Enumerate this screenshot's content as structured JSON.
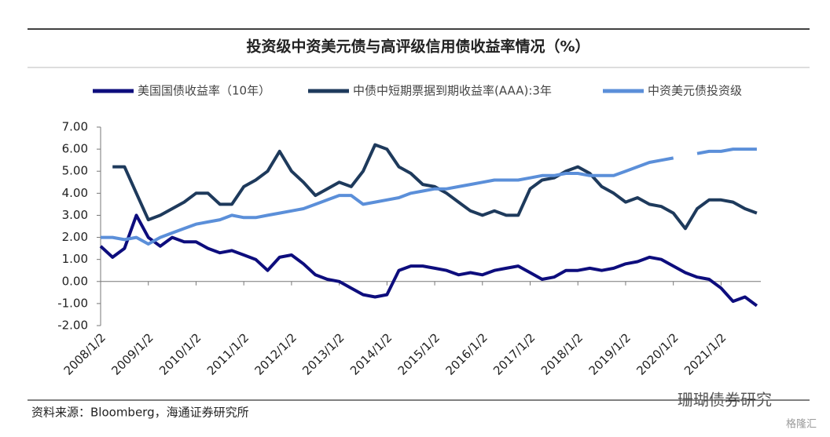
{
  "chart_data": {
    "type": "line",
    "title": "投资级中资美元债与高评级信用债收益率情况（%）",
    "source": "资料来源：Bloomberg，海通证券研究所",
    "watermark": "珊瑚债券研究",
    "watermark2": "格隆汇",
    "x": [
      "2008/1/2",
      "2008/4/2",
      "2008/7/2",
      "2008/10/2",
      "2009/1/2",
      "2009/4/2",
      "2009/7/2",
      "2009/10/2",
      "2010/1/2",
      "2010/4/2",
      "2010/7/2",
      "2010/10/2",
      "2011/1/2",
      "2011/4/2",
      "2011/7/2",
      "2011/10/2",
      "2012/1/2",
      "2012/4/2",
      "2012/7/2",
      "2012/10/2",
      "2013/1/2",
      "2013/4/2",
      "2013/7/2",
      "2013/10/2",
      "2014/1/2",
      "2014/4/2",
      "2014/7/2",
      "2014/10/2",
      "2015/1/2",
      "2015/4/2",
      "2015/7/2",
      "2015/10/2",
      "2016/1/2",
      "2016/4/2",
      "2016/7/2",
      "2016/10/2",
      "2017/1/2",
      "2017/4/2",
      "2017/7/2",
      "2017/10/2",
      "2018/1/2",
      "2018/4/2",
      "2018/7/2",
      "2018/10/2",
      "2019/1/2",
      "2019/4/2",
      "2019/7/2",
      "2019/10/2",
      "2020/1/2",
      "2020/4/2",
      "2020/7/2",
      "2020/10/2",
      "2021/1/2",
      "2021/4/2",
      "2021/7/2",
      "2021/10/2"
    ],
    "series": [
      {
        "name": "美国国债收益率（10年）",
        "color": "#0d0d7d",
        "values": [
          1.6,
          1.1,
          1.5,
          3.0,
          2.0,
          1.6,
          2.0,
          1.8,
          1.8,
          1.5,
          1.3,
          1.4,
          1.2,
          1.0,
          0.5,
          1.1,
          1.2,
          0.8,
          0.3,
          0.1,
          0.0,
          -0.3,
          -0.6,
          -0.7,
          -0.6,
          0.5,
          0.7,
          0.7,
          0.6,
          0.5,
          0.3,
          0.4,
          0.3,
          0.5,
          0.6,
          0.7,
          0.4,
          0.1,
          0.2,
          0.5,
          0.5,
          0.6,
          0.5,
          0.6,
          0.8,
          0.9,
          1.1,
          1.0,
          0.7,
          0.4,
          0.2,
          0.1,
          -0.3,
          -0.9,
          -0.7,
          -1.1
        ]
      },
      {
        "name": "中债中短期票据到期收益率(AAA):3年",
        "color": "#1e3a5c",
        "values": [
          null,
          5.2,
          5.2,
          4.0,
          2.8,
          3.0,
          3.3,
          3.6,
          4.0,
          4.0,
          3.5,
          3.5,
          4.3,
          4.6,
          5.0,
          5.9,
          5.0,
          4.5,
          3.9,
          4.2,
          4.5,
          4.3,
          5.0,
          6.2,
          6.0,
          5.2,
          4.9,
          4.4,
          4.3,
          4.0,
          3.6,
          3.2,
          3.0,
          3.2,
          3.0,
          3.0,
          4.2,
          4.6,
          4.7,
          5.0,
          5.2,
          4.9,
          4.3,
          4.0,
          3.6,
          3.8,
          3.5,
          3.4,
          3.1,
          2.4,
          3.3,
          3.7,
          3.7,
          3.6,
          3.3,
          3.1
        ]
      },
      {
        "name": "中资美元债投资级",
        "color": "#5b8fd9",
        "values": [
          2.0,
          2.0,
          1.9,
          2.0,
          1.7,
          2.0,
          2.2,
          2.4,
          2.6,
          2.7,
          2.8,
          3.0,
          2.9,
          2.9,
          3.0,
          3.1,
          3.2,
          3.3,
          3.5,
          3.7,
          3.9,
          3.9,
          3.5,
          3.6,
          3.7,
          3.8,
          4.0,
          4.1,
          4.2,
          4.2,
          4.3,
          4.4,
          4.5,
          4.6,
          4.6,
          4.6,
          4.7,
          4.8,
          4.8,
          4.9,
          4.9,
          4.8,
          4.8,
          4.8,
          5.0,
          5.2,
          5.4,
          5.5,
          5.6,
          null,
          5.8,
          5.9,
          5.9,
          6.0,
          6.0,
          6.0
        ]
      }
    ],
    "xlim": [
      "2008/1/2",
      "2021/11/2"
    ],
    "xticks": [
      "2008/1/2",
      "2009/1/2",
      "2010/1/2",
      "2011/1/2",
      "2012/1/2",
      "2013/1/2",
      "2014/1/2",
      "2015/1/2",
      "2016/1/2",
      "2017/1/2",
      "2018/1/2",
      "2019/1/2",
      "2020/1/2",
      "2021/1/2"
    ],
    "ylim": [
      -2,
      7
    ],
    "yticks": [
      {
        "value": 7,
        "label": "7.00"
      },
      {
        "value": 6,
        "label": "6.00"
      },
      {
        "value": 5,
        "label": "5.00"
      },
      {
        "value": 4,
        "label": "4.00"
      },
      {
        "value": 3,
        "label": "3.00"
      },
      {
        "value": 2,
        "label": "2.00"
      },
      {
        "value": 1,
        "label": "1.00"
      },
      {
        "value": 0,
        "label": "0.00"
      },
      {
        "value": -1,
        "label": "-1.00"
      },
      {
        "value": -2,
        "label": "-2.00"
      }
    ],
    "grid": false
  }
}
